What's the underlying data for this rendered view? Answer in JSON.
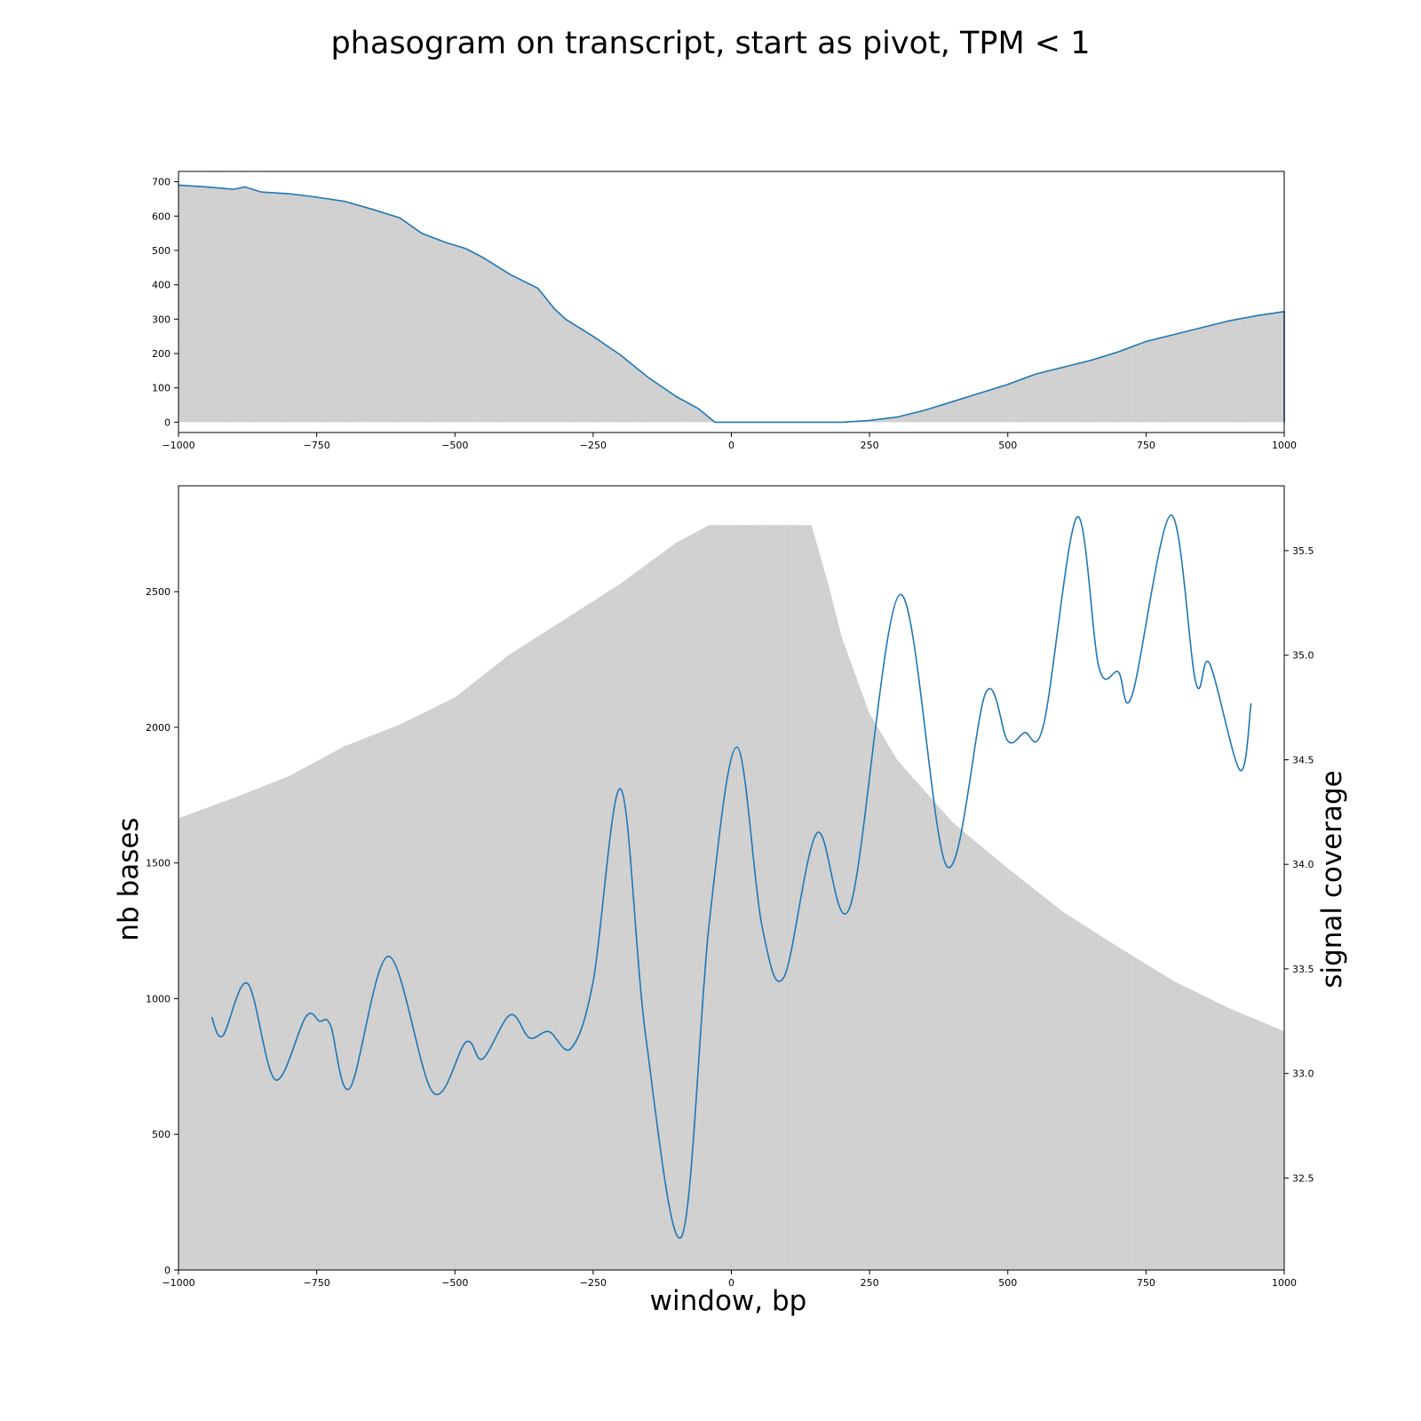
{
  "title": "phasogram on transcript, start as pivot, TPM < 1",
  "colors": {
    "bars": "#d3d3d3",
    "line": "#1f77b4",
    "axis": "#000000"
  },
  "chart_data": [
    {
      "type": "area",
      "xlim": [
        -1000,
        1000
      ],
      "ylim": [
        -30,
        730
      ],
      "x_ticks": [
        -1000,
        -750,
        -500,
        -250,
        0,
        250,
        500,
        750,
        1000
      ],
      "x_tick_labels": [
        "−1000",
        "−750",
        "−500",
        "−250",
        "0",
        "250",
        "500",
        "750",
        "1000"
      ],
      "y_ticks": [
        0,
        100,
        200,
        300,
        400,
        500,
        600,
        700
      ],
      "y_tick_labels": [
        "0",
        "100",
        "200",
        "300",
        "400",
        "500",
        "600",
        "700"
      ],
      "series": [
        {
          "kind": "line",
          "x": [
            -1000,
            -950,
            -900,
            -880,
            -850,
            -800,
            -750,
            -700,
            -650,
            -600,
            -560,
            -520,
            -480,
            -450,
            -400,
            -350,
            -320,
            -300,
            -250,
            -200,
            -150,
            -100,
            -60,
            -45,
            -30,
            0,
            100,
            150,
            200,
            250,
            300,
            350,
            400,
            450,
            500,
            550,
            600,
            650,
            700,
            750,
            800,
            850,
            900,
            950,
            1000
          ],
          "y": [
            690,
            685,
            678,
            685,
            670,
            665,
            655,
            643,
            620,
            595,
            550,
            525,
            505,
            480,
            430,
            390,
            330,
            300,
            250,
            195,
            130,
            75,
            40,
            20,
            0,
            0,
            0,
            0,
            0,
            5,
            15,
            35,
            60,
            85,
            110,
            140,
            160,
            180,
            205,
            235,
            255,
            275,
            295,
            310,
            322
          ]
        }
      ]
    },
    {
      "type": "bar",
      "xlabel": "window, bp",
      "ylabel": "nb bases",
      "y2label": "signal coverage",
      "xlim": [
        -1000,
        1000
      ],
      "ylim": [
        0,
        2890
      ],
      "y2lim": [
        32.06,
        35.81
      ],
      "x_ticks": [
        -1000,
        -750,
        -500,
        -250,
        0,
        250,
        500,
        750,
        1000
      ],
      "x_tick_labels": [
        "−1000",
        "−750",
        "−500",
        "−250",
        "0",
        "250",
        "500",
        "750",
        "1000"
      ],
      "y_ticks": [
        0,
        500,
        1000,
        1500,
        2000,
        2500
      ],
      "y_tick_labels": [
        "0",
        "500",
        "1000",
        "1500",
        "2000",
        "2500"
      ],
      "y2_ticks": [
        32.5,
        33.0,
        33.5,
        34.0,
        34.5,
        35.0,
        35.5
      ],
      "y2_tick_labels": [
        "32.5",
        "33.0",
        "33.5",
        "34.0",
        "34.5",
        "35.0",
        "35.5"
      ],
      "series": [
        {
          "kind": "bars",
          "x": [
            -1000,
            -900,
            -800,
            -700,
            -600,
            -500,
            -400,
            -300,
            -200,
            -100,
            -40,
            0,
            50,
            100,
            145,
            175,
            200,
            250,
            300,
            400,
            500,
            600,
            700,
            800,
            900,
            1000
          ],
          "y": [
            1665,
            1740,
            1820,
            1930,
            2010,
            2110,
            2270,
            2400,
            2530,
            2680,
            2745,
            2745,
            2745,
            2745,
            2745,
            2530,
            2330,
            2050,
            1880,
            1650,
            1480,
            1320,
            1190,
            1065,
            965,
            880
          ]
        },
        {
          "kind": "line",
          "axis": "right",
          "x": [
            -940,
            -920,
            -875,
            -825,
            -770,
            -745,
            -725,
            -690,
            -620,
            -540,
            -480,
            -450,
            -400,
            -365,
            -330,
            -290,
            -250,
            -200,
            -155,
            -90,
            -40,
            10,
            55,
            95,
            155,
            215,
            305,
            390,
            460,
            500,
            530,
            565,
            625,
            665,
            700,
            725,
            795,
            840,
            865,
            920,
            940
          ],
          "y": [
            33.27,
            33.18,
            33.43,
            32.97,
            33.27,
            33.25,
            33.23,
            32.93,
            33.56,
            32.91,
            33.15,
            33.07,
            33.28,
            33.17,
            33.2,
            33.12,
            33.44,
            34.36,
            33.18,
            32.22,
            33.72,
            34.56,
            33.71,
            33.46,
            34.15,
            33.8,
            35.29,
            33.99,
            34.82,
            34.59,
            34.63,
            34.67,
            35.66,
            34.94,
            34.92,
            34.81,
            35.67,
            34.87,
            34.96,
            34.45,
            34.77
          ]
        }
      ]
    }
  ]
}
